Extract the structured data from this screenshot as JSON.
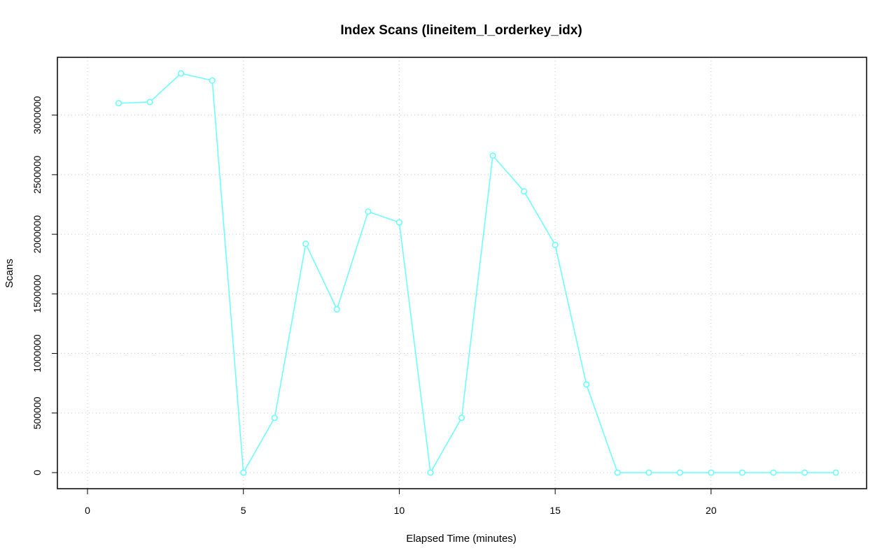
{
  "chart_data": {
    "type": "line",
    "title": "Index Scans (lineitem_l_orderkey_idx)",
    "xlabel": "Elapsed Time (minutes)",
    "ylabel": "Scans",
    "xlim": [
      0,
      24
    ],
    "ylim": [
      0,
      3350000
    ],
    "x_ticks": [
      0,
      5,
      10,
      15,
      20
    ],
    "y_ticks": [
      0,
      500000,
      1000000,
      1500000,
      2000000,
      2500000,
      3000000
    ],
    "x_tick_labels": [
      "0",
      "5",
      "10",
      "15",
      "20"
    ],
    "y_tick_labels": [
      "0",
      "500000",
      "1000000",
      "1500000",
      "2000000",
      "2500000",
      "3000000"
    ],
    "grid": true,
    "color": "#66ffff",
    "series": [
      {
        "x": [
          1,
          2,
          3,
          4,
          5,
          6,
          7,
          8,
          9,
          10,
          11,
          12,
          13,
          14,
          15,
          16,
          17,
          18,
          19,
          20,
          21,
          22,
          23,
          24
        ],
        "values": [
          3100000,
          3110000,
          3350000,
          3290000,
          0,
          460000,
          1920000,
          1370000,
          2190000,
          2100000,
          0,
          460000,
          2660000,
          2360000,
          1910000,
          740000,
          0,
          0,
          0,
          0,
          0,
          0,
          0,
          0
        ]
      }
    ]
  }
}
